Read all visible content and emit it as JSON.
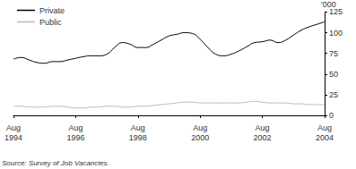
{
  "chart_data": {
    "type": "line",
    "y_label": "'000",
    "source": "Source: Survey of Job Vacancies.",
    "categories": [
      "Aug 1994",
      null,
      null,
      null,
      null,
      null,
      null,
      null,
      "Aug 1996",
      null,
      null,
      null,
      null,
      null,
      null,
      null,
      "Aug 1998",
      null,
      null,
      null,
      null,
      null,
      null,
      null,
      "Aug 2000",
      null,
      null,
      null,
      null,
      null,
      null,
      null,
      "Aug 2002",
      null,
      null,
      null,
      null,
      null,
      null,
      null,
      "Aug 2004"
    ],
    "series": [
      {
        "name": "Private",
        "color": "#000000",
        "values": [
          68,
          70,
          67,
          64,
          63,
          65,
          65,
          67,
          69,
          71,
          72,
          72,
          74,
          82,
          88,
          86,
          82,
          82,
          86,
          91,
          96,
          98,
          100,
          99,
          92,
          82,
          74,
          72,
          74,
          78,
          83,
          88,
          89,
          91,
          88,
          91,
          97,
          103,
          107,
          110,
          113
        ]
      },
      {
        "name": "Public",
        "color": "#bbbbbb",
        "values": [
          11,
          11,
          10,
          10,
          10,
          11,
          11,
          10,
          9,
          9,
          10,
          10,
          11,
          11,
          10,
          10,
          11,
          11,
          12,
          13,
          14,
          15,
          16,
          16,
          15,
          15,
          15,
          15,
          15,
          15,
          16,
          17,
          16,
          15,
          15,
          15,
          14,
          14,
          13,
          13,
          13
        ]
      }
    ],
    "ylim": [
      0,
      125
    ],
    "yticks": [
      0,
      25,
      50,
      75,
      100,
      125
    ],
    "legend": "top-left",
    "grid": false
  }
}
